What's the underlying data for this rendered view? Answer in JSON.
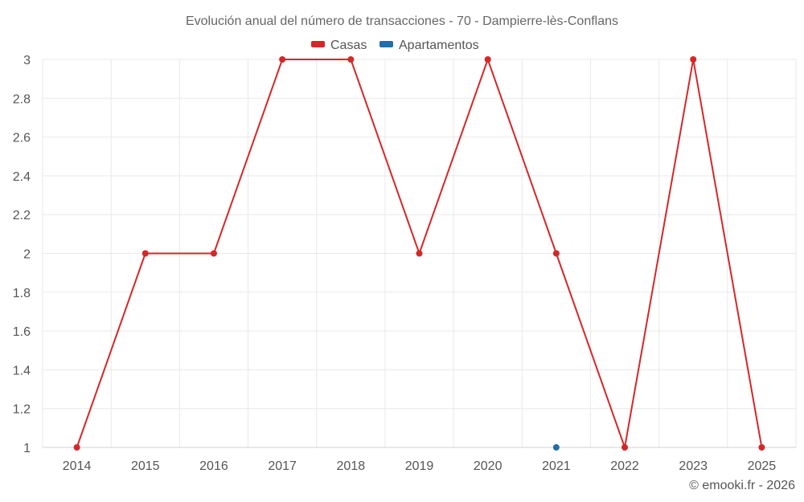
{
  "chart_data": {
    "type": "line",
    "title": "Evolución anual del número de transacciones - 70 - Dampierre-lès-Conflans",
    "categories": [
      "2014",
      "2015",
      "2016",
      "2017",
      "2018",
      "2019",
      "2020",
      "2021",
      "2022",
      "2023",
      "2025"
    ],
    "y_ticks": [
      "1",
      "1.2",
      "1.4",
      "1.6",
      "1.8",
      "2",
      "2.2",
      "2.4",
      "2.6",
      "2.8",
      "3"
    ],
    "ylim": [
      1,
      3
    ],
    "grid": true,
    "legend_position": "top-center",
    "series": [
      {
        "name": "Casas",
        "color": "#d62728",
        "values": [
          1,
          2,
          2,
          3,
          3,
          2,
          3,
          2,
          1,
          3,
          1
        ]
      },
      {
        "name": "Apartamentos",
        "color": "#1f6fa8",
        "values": [
          null,
          null,
          null,
          null,
          null,
          null,
          null,
          1,
          null,
          null,
          null
        ]
      }
    ],
    "credit": "© emooki.fr - 2026"
  }
}
